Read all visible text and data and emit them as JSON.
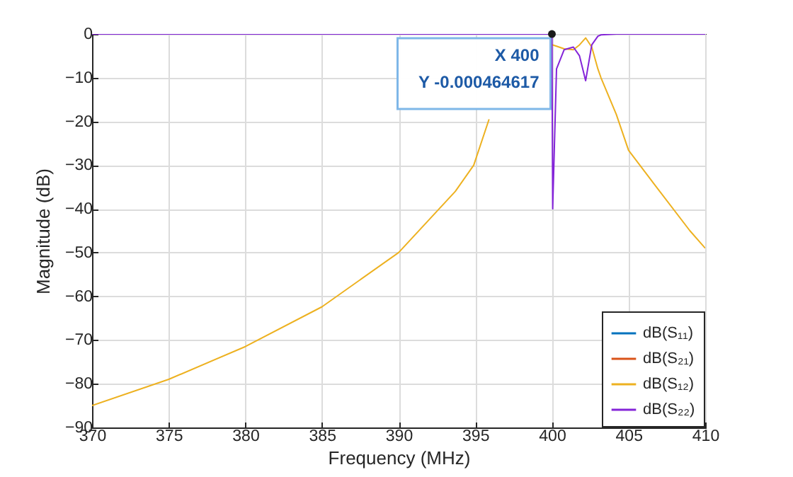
{
  "chart_data": {
    "type": "line",
    "xlabel": "Frequency (MHz)",
    "ylabel": "Magnitude (dB)",
    "x": [
      370,
      375,
      380,
      385,
      390,
      393.7,
      394.9,
      395.9,
      397.7,
      398.9,
      399.5,
      400,
      400.05,
      400.3,
      400.8,
      401.4,
      401.8,
      402.2,
      402.6,
      403,
      403.2,
      404.2,
      405,
      406.6,
      409,
      410
    ],
    "series": [
      {
        "name": "dB(S₁₁)",
        "color": "#0072bd",
        "values": [
          null,
          null,
          null,
          null,
          null,
          null,
          null,
          null,
          null,
          null,
          null,
          null,
          null,
          null,
          null,
          null,
          null,
          null,
          null,
          null,
          null,
          null,
          null,
          null,
          null,
          null
        ]
      },
      {
        "name": "dB(S₂₁)",
        "color": "#d95319",
        "values": [
          null,
          null,
          null,
          null,
          null,
          null,
          null,
          null,
          null,
          null,
          null,
          null,
          null,
          null,
          null,
          null,
          null,
          null,
          null,
          null,
          null,
          null,
          null,
          null,
          null,
          null
        ]
      },
      {
        "name": "dB(S₁₂)",
        "color": "#edb120",
        "values": [
          -85,
          -79,
          -71.5,
          -62.4,
          -50,
          -36,
          -30,
          -19.5,
          null,
          null,
          null,
          -2.5,
          -2.5,
          -2.8,
          -3.4,
          -3.6,
          -2.5,
          -0.9,
          -3,
          -8,
          -10,
          -18.4,
          -26.6,
          -34,
          -45,
          -49
        ]
      },
      {
        "name": "dB(S₂₂)",
        "color": "#8424d8",
        "values": [
          0,
          0,
          0,
          0,
          0,
          0,
          0,
          0,
          0,
          0,
          0,
          0,
          -40,
          -8,
          -3.6,
          -3,
          -5,
          -10.7,
          -2.5,
          -0.5,
          -0.2,
          0,
          0,
          0,
          0,
          0
        ]
      }
    ],
    "xlim": [
      370,
      410
    ],
    "xticks": [
      370,
      375,
      380,
      385,
      390,
      395,
      400,
      405,
      410
    ],
    "ylim": [
      -90,
      0
    ],
    "yticks": [
      -90,
      -80,
      -70,
      -60,
      -50,
      -40,
      -30,
      -20,
      -10,
      0
    ],
    "annotations": [
      {
        "text": "X 400\nY -0.000464617",
        "x": 400,
        "y": -0.000464617
      }
    ],
    "grid": true,
    "legend": "bottom right",
    "marker": "none",
    "line_style": "solid"
  }
}
